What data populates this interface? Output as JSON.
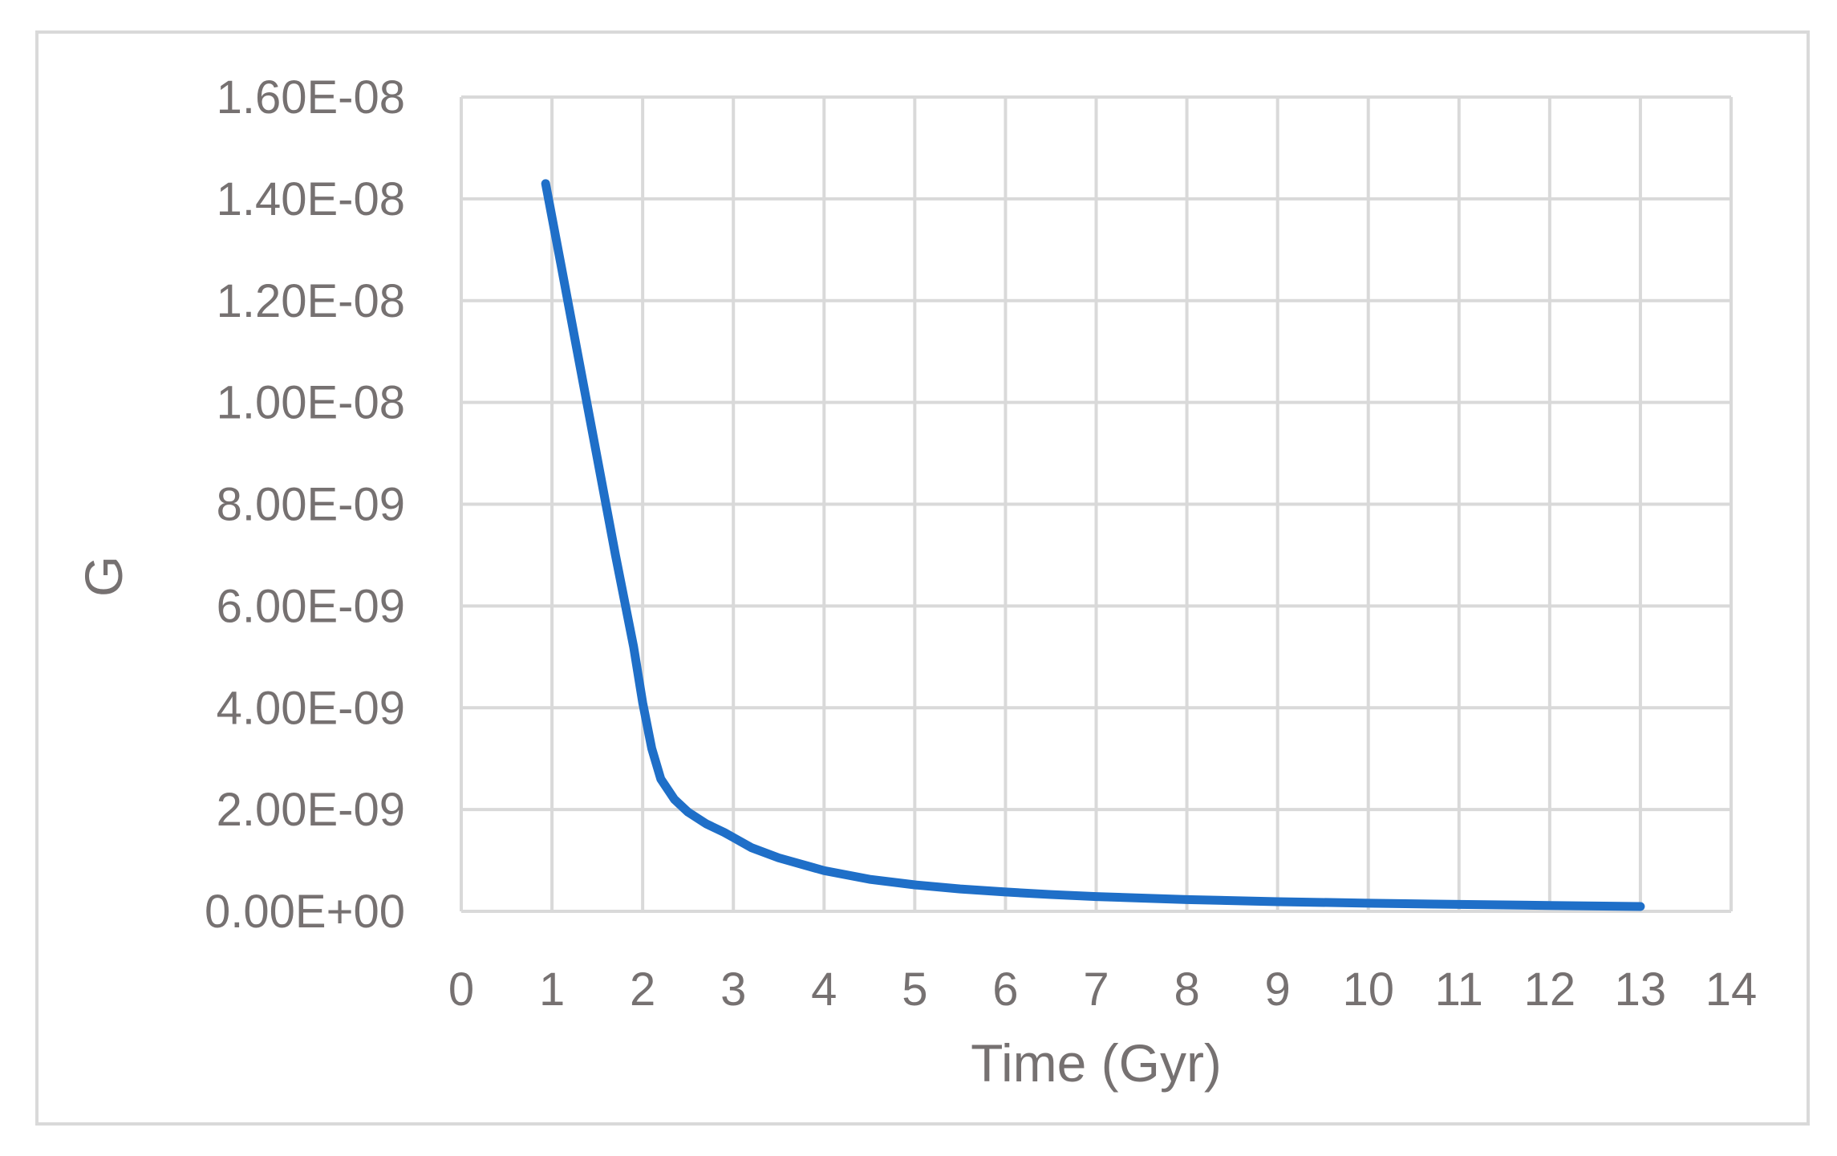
{
  "chart_data": {
    "type": "line",
    "title": "",
    "xlabel": "Time (Gyr)",
    "ylabel": "G",
    "xlim": [
      0,
      14
    ],
    "ylim": [
      0,
      1.6e-08
    ],
    "x_ticks": [
      "0",
      "1",
      "2",
      "3",
      "4",
      "5",
      "6",
      "7",
      "8",
      "9",
      "10",
      "11",
      "12",
      "13",
      "14"
    ],
    "y_ticks": [
      "0.00E+00",
      "2.00E-09",
      "4.00E-09",
      "6.00E-09",
      "8.00E-09",
      "1.00E-08",
      "1.20E-08",
      "1.40E-08",
      "1.60E-08"
    ],
    "grid": true,
    "legend": "none",
    "series": [
      {
        "color": "#1f6fc8",
        "x": [
          0.93,
          1.1,
          1.3,
          1.5,
          1.7,
          1.9,
          2.0,
          2.1,
          2.2,
          2.35,
          2.5,
          2.7,
          2.9,
          3.0,
          3.2,
          3.5,
          4.0,
          4.5,
          5.0,
          5.5,
          6.0,
          6.5,
          7.0,
          7.5,
          8.0,
          9.0,
          10.0,
          11.0,
          12.0,
          13.0
        ],
        "y": [
          1.43e-08,
          1.27e-08,
          1.08e-08,
          8.9e-09,
          7e-09,
          5.2e-09,
          4.1e-09,
          3.2e-09,
          2.6e-09,
          2.2e-09,
          1.95e-09,
          1.72e-09,
          1.55e-09,
          1.45e-09,
          1.25e-09,
          1.05e-09,
          8e-10,
          6.3e-10,
          5.2e-10,
          4.4e-10,
          3.8e-10,
          3.3e-10,
          2.9e-10,
          2.6e-10,
          2.3e-10,
          1.9e-10,
          1.6e-10,
          1.35e-10,
          1.15e-10,
          9.5e-11
        ]
      }
    ]
  },
  "colors": {
    "grid": "#d9d9d9",
    "line": "#1f6fc8",
    "text": "#767171"
  }
}
